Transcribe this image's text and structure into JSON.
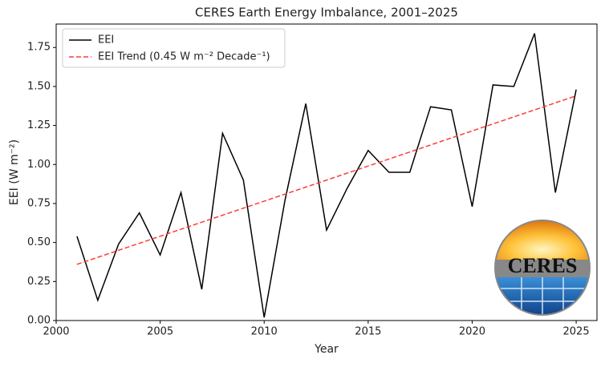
{
  "chart_data": {
    "type": "line",
    "title": "CERES Earth Energy Imbalance, 2001–2025",
    "x_label": "Year",
    "y_label": "EEI (W m⁻²)",
    "x": [
      2001,
      2002,
      2003,
      2004,
      2005,
      2006,
      2007,
      2008,
      2009,
      2010,
      2011,
      2012,
      2013,
      2014,
      2015,
      2016,
      2017,
      2018,
      2019,
      2020,
      2021,
      2022,
      2023,
      2024,
      2025
    ],
    "series": [
      {
        "name": "EEI",
        "color": "#000000",
        "dash": "solid",
        "values": [
          0.54,
          0.13,
          0.49,
          0.69,
          0.42,
          0.82,
          0.2,
          1.2,
          0.9,
          0.02,
          0.77,
          1.39,
          0.58,
          0.85,
          1.09,
          0.95,
          0.95,
          1.37,
          1.35,
          0.73,
          1.51,
          1.5,
          1.84,
          0.82,
          1.48
        ]
      },
      {
        "name": "EEI Trend (0.45 W m⁻² Decade⁻¹)",
        "color": "#ff3b3b",
        "dash": "dashed",
        "values": [
          0.36,
          0.405,
          0.45,
          0.495,
          0.54,
          0.585,
          0.63,
          0.675,
          0.72,
          0.765,
          0.81,
          0.855,
          0.9,
          0.945,
          0.99,
          1.035,
          1.08,
          1.125,
          1.17,
          1.215,
          1.26,
          1.305,
          1.35,
          1.395,
          1.44
        ]
      }
    ],
    "xlim": [
      2000,
      2026
    ],
    "ylim": [
      0,
      1.9
    ],
    "xticks": [
      2000,
      2005,
      2010,
      2015,
      2020,
      2025
    ],
    "yticks": [
      {
        "value": 0,
        "label": "0.00"
      },
      {
        "value": 0.25,
        "label": "0.25"
      },
      {
        "value": 0.5,
        "label": "0.50"
      },
      {
        "value": 0.75,
        "label": "0.75"
      },
      {
        "value": 1,
        "label": "1.00"
      },
      {
        "value": 1.25,
        "label": "1.25"
      },
      {
        "value": 1.5,
        "label": "1.50"
      },
      {
        "value": 1.75,
        "label": "1.75"
      }
    ],
    "grid": false,
    "legend": "upper left",
    "logo_text": "CERES"
  }
}
